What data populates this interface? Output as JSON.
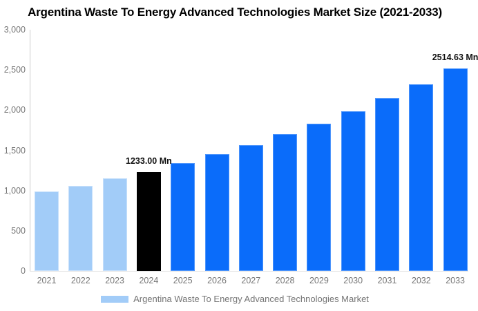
{
  "title": "Argentina Waste To Energy Advanced Technologies Market Size (2021-2033)",
  "chart_data": {
    "type": "bar",
    "title": "Argentina Waste To Energy Advanced Technologies Market Size (2021-2033)",
    "categories": [
      "2021",
      "2022",
      "2023",
      "2024",
      "2025",
      "2026",
      "2027",
      "2028",
      "2029",
      "2030",
      "2031",
      "2032",
      "2033"
    ],
    "values": [
      985,
      1060,
      1150,
      1233.0,
      1344,
      1450,
      1565,
      1700,
      1834,
      1983,
      2148,
      2320,
      2514.63
    ],
    "unit": "Mn",
    "color_roles": [
      "historical",
      "historical",
      "historical",
      "base_year",
      "forecast",
      "forecast",
      "forecast",
      "forecast",
      "forecast",
      "forecast",
      "forecast",
      "forecast",
      "forecast"
    ],
    "colors": {
      "historical": "#a2ccf8",
      "base_year": "#000000",
      "forecast": "#0a6cfa",
      "axis_line": "#cccccc",
      "tick_label": "#757575",
      "annotation": "#111111"
    },
    "annotations": [
      {
        "category": "2024",
        "text": "1233.00 Mn"
      },
      {
        "category": "2033",
        "text": "2514.63 Mn"
      }
    ],
    "xlabel": "",
    "ylabel": "",
    "ylim": [
      0,
      3000
    ],
    "y_ticks": [
      {
        "value": 0,
        "label": "0"
      },
      {
        "value": 500,
        "label": "500"
      },
      {
        "value": 1000,
        "label": "1,000"
      },
      {
        "value": 1500,
        "label": "1,500"
      },
      {
        "value": 2000,
        "label": "2,000"
      },
      {
        "value": 2500,
        "label": "2,500"
      },
      {
        "value": 3000,
        "label": "3,000"
      }
    ],
    "grid": false,
    "legend": {
      "position": "bottom",
      "label": "Argentina Waste To Energy Advanced Technologies Market",
      "swatch_color": "#a2ccf8"
    }
  }
}
